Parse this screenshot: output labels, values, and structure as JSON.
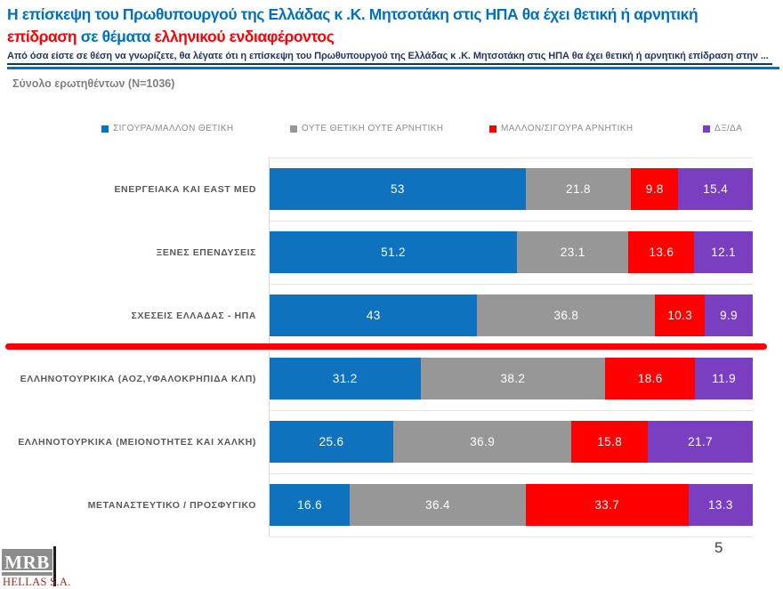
{
  "header": {
    "title_line1": "Η επίσκεψη του Πρωθυπουργού της Ελλάδας κ .Κ. Μητσοτάκη  στις ΗΠΑ θα έχει θετική ή αρνητική",
    "title_line2_red1": "επίδραση ",
    "title_line2_blue": " σε θέματα ",
    "title_line2_red2": "ελληνικού ενδιαφέροντος",
    "subtitle": "Από όσα είστε σε θέση να γνωρίζετε,  θα λέγατε ότι η επίσκεψη του Πρωθυπουργού της Ελλάδας κ .Κ. Μητσοτάκη  στις ΗΠΑ θα έχει θετική ή αρνητική επίδραση στην ...",
    "sample_note": "Σύνολο ερωτηθέντων (N=1036)"
  },
  "colors": {
    "title_blue": "#0070C0",
    "title_red": "#FF0000",
    "subtitle_navy": "#1F3864",
    "gridline": "#E4E4E4",
    "red_divider": "#FF0000"
  },
  "chart_data": {
    "type": "bar",
    "orientation": "horizontal",
    "stacked": true,
    "xlim": [
      0,
      100
    ],
    "grid": true,
    "legend_position": "top",
    "value_labels": "inside, white",
    "divider_after_category_index": 2,
    "categories": [
      "ΕΝΕΡΓΕΙΑΚΑ ΚΑΙ EAST MED",
      "ΞΕΝΕΣ ΕΠΕΝΔΥΣΕΙΣ",
      "ΣΧΕΣΕΙΣ ΕΛΛΑΔΑΣ - ΗΠΑ",
      "ΕΛΛΗΝΟΤΟΥΡΚΙΚΑ (ΑΟΖ,ΥΦΑΛΟΚΡΗΠΙΔΑ ΚΛΠ)",
      "ΕΛΛΗΝΟΤΟΥΡΚΙΚΑ (ΜΕΙΟΝΟΤΗΤΕΣ ΚΑΙ ΧΑΛΚΗ)",
      "ΜΕΤΑΝΑΣΤΕΥΤΙΚΟ / ΠΡΟΣΦΥΓΙΚΟ"
    ],
    "series": [
      {
        "name": "ΣΙΓΟΥΡΑ/ΜΑΛΛΟΝ ΘΕΤΙΚΗ",
        "color": "#0E72BE",
        "values": [
          53,
          51.2,
          43,
          31.2,
          25.6,
          16.6
        ]
      },
      {
        "name": "ΟΥΤΕ ΘΕΤΙΚΗ ΟΥΤΕ ΑΡΝΗΤΙΚΗ",
        "color": "#979797",
        "values": [
          21.8,
          23.1,
          36.8,
          38.2,
          36.9,
          36.4
        ]
      },
      {
        "name": "ΜΑΛΛΟΝ/ΣΙΓΟΥΡΑ ΑΡΝΗΤΙΚΗ",
        "color": "#FF0000",
        "values": [
          9.8,
          13.6,
          10.3,
          18.6,
          15.8,
          33.7
        ]
      },
      {
        "name": "ΔΞ/ΔΑ",
        "color": "#7A3EC1",
        "values": [
          15.4,
          12.1,
          9.9,
          11.9,
          21.7,
          13.3
        ]
      }
    ]
  },
  "logo": {
    "text": "MRB",
    "subtext": "HELLAS S.A."
  },
  "footer": {
    "page_number": "5"
  }
}
